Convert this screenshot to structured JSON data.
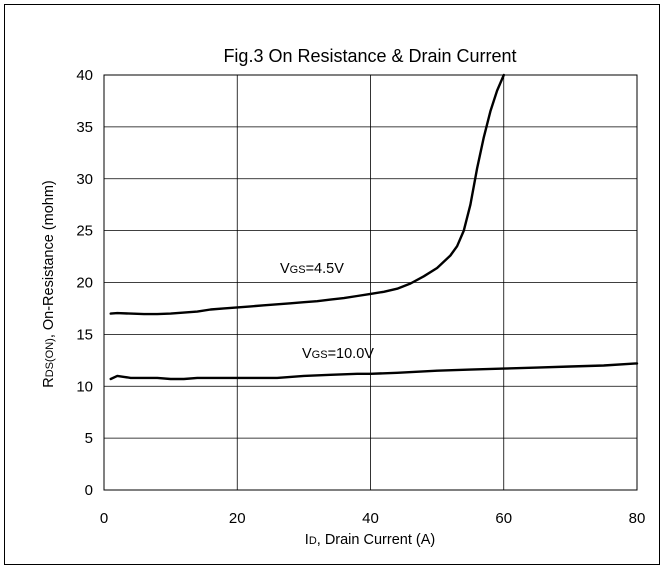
{
  "chart_data": {
    "type": "line",
    "title": "Fig.3 On Resistance & Drain Current",
    "xlabel": {
      "main": "I",
      "sub": "D",
      "rest": ", Drain Current (A)"
    },
    "ylabel": {
      "main": "R",
      "sub": "DS(ON)",
      "rest": ", On-Resistance (mohm)"
    },
    "xlim": [
      0,
      80
    ],
    "ylim": [
      0,
      40
    ],
    "xticks": [
      0,
      20,
      40,
      60,
      80
    ],
    "yticks": [
      0,
      5,
      10,
      15,
      20,
      25,
      30,
      35,
      40
    ],
    "grid": true,
    "series": [
      {
        "label": {
          "main": "V",
          "sub": "GS",
          "rest": "=4.5V"
        },
        "color": "#000000",
        "points": [
          [
            1,
            17.0
          ],
          [
            2,
            17.05
          ],
          [
            4,
            17.0
          ],
          [
            6,
            16.95
          ],
          [
            8,
            16.95
          ],
          [
            10,
            17.0
          ],
          [
            12,
            17.1
          ],
          [
            14,
            17.2
          ],
          [
            16,
            17.4
          ],
          [
            18,
            17.5
          ],
          [
            20,
            17.6
          ],
          [
            22,
            17.7
          ],
          [
            24,
            17.8
          ],
          [
            26,
            17.9
          ],
          [
            28,
            18.0
          ],
          [
            30,
            18.1
          ],
          [
            32,
            18.2
          ],
          [
            34,
            18.35
          ],
          [
            36,
            18.5
          ],
          [
            38,
            18.7
          ],
          [
            40,
            18.9
          ],
          [
            42,
            19.1
          ],
          [
            44,
            19.4
          ],
          [
            46,
            19.9
          ],
          [
            48,
            20.6
          ],
          [
            50,
            21.4
          ],
          [
            52,
            22.6
          ],
          [
            53,
            23.5
          ],
          [
            54,
            25.0
          ],
          [
            55,
            27.5
          ],
          [
            56,
            31.0
          ],
          [
            57,
            34.0
          ],
          [
            58,
            36.5
          ],
          [
            59,
            38.5
          ],
          [
            60,
            40.0
          ]
        ]
      },
      {
        "label": {
          "main": "V",
          "sub": "GS",
          "rest": "=10.0V"
        },
        "color": "#000000",
        "points": [
          [
            1,
            10.7
          ],
          [
            2,
            11.0
          ],
          [
            3,
            10.9
          ],
          [
            4,
            10.8
          ],
          [
            6,
            10.8
          ],
          [
            8,
            10.8
          ],
          [
            10,
            10.7
          ],
          [
            12,
            10.7
          ],
          [
            14,
            10.8
          ],
          [
            20,
            10.8
          ],
          [
            26,
            10.8
          ],
          [
            28,
            10.9
          ],
          [
            30,
            11.0
          ],
          [
            34,
            11.1
          ],
          [
            38,
            11.2
          ],
          [
            40,
            11.2
          ],
          [
            44,
            11.3
          ],
          [
            50,
            11.5
          ],
          [
            55,
            11.6
          ],
          [
            60,
            11.7
          ],
          [
            65,
            11.8
          ],
          [
            70,
            11.9
          ],
          [
            75,
            12.0
          ],
          [
            80,
            12.2
          ]
        ]
      }
    ]
  }
}
